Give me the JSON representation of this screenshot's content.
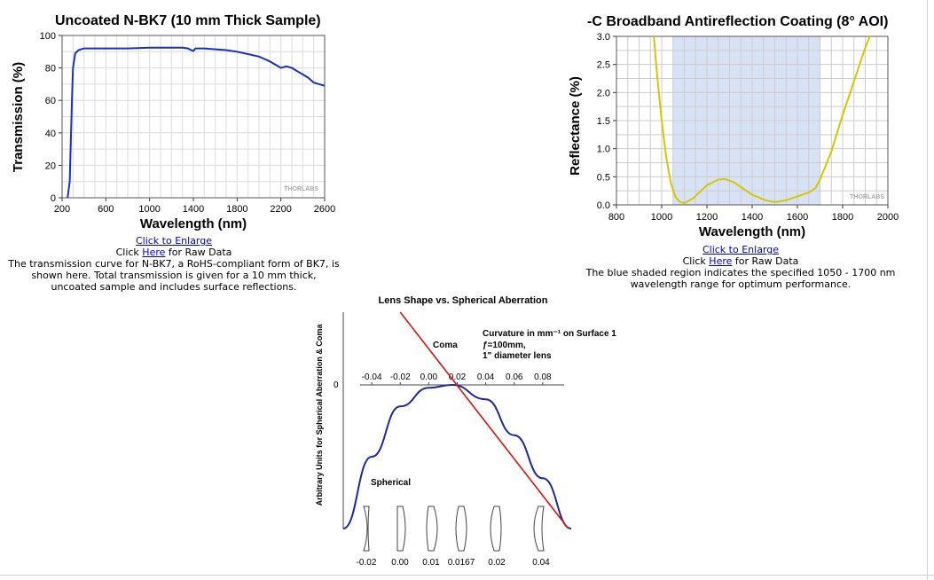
{
  "chart_data": [
    {
      "type": "line",
      "title": "Uncoated N-BK7 (10 mm Thick Sample)",
      "xlabel": "Wavelength (nm)",
      "ylabel": "Transmission (%)",
      "xlim": [
        200,
        2600
      ],
      "ylim": [
        0,
        100
      ],
      "xticks": [
        200,
        600,
        1000,
        1400,
        1800,
        2200,
        2600
      ],
      "yticks": [
        0,
        20,
        40,
        60,
        80,
        100
      ],
      "grid": true,
      "watermark": "THORLABS",
      "color": "#1a2ecc",
      "series": [
        {
          "x": [
            250,
            270,
            290,
            300,
            320,
            350,
            400,
            500,
            600,
            800,
            1000,
            1200,
            1300,
            1350,
            1380,
            1400,
            1420,
            1500,
            1600,
            1700,
            1800,
            1900,
            2000,
            2050,
            2100,
            2150,
            2200,
            2250,
            2300,
            2350,
            2400,
            2450,
            2500,
            2550,
            2600
          ],
          "y": [
            0,
            10,
            60,
            80,
            89,
            91,
            92,
            92,
            92,
            92,
            92.5,
            92.5,
            92.5,
            92,
            91,
            90.5,
            92,
            92,
            91.5,
            91,
            90,
            88.5,
            87,
            85.5,
            84,
            82,
            80,
            81,
            80,
            78,
            76,
            74,
            71,
            70,
            69
          ]
        }
      ]
    },
    {
      "type": "line",
      "title": "-C Broadband Antireflection Coating (8° AOI)",
      "xlabel": "Wavelength (nm)",
      "ylabel": "Reflectance (%)",
      "xlim": [
        800,
        2000
      ],
      "ylim": [
        0,
        3.0
      ],
      "xticks": [
        800,
        1000,
        1200,
        1400,
        1600,
        1800,
        2000
      ],
      "yticks": [
        "0.0",
        "0.5",
        "1.0",
        "1.5",
        "2.0",
        "2.5",
        "3.0"
      ],
      "grid": true,
      "watermark": "THORLABS",
      "color": "#d4c800",
      "shaded_region": [
        1050,
        1700
      ],
      "series": [
        {
          "x": [
            965,
            980,
            1000,
            1020,
            1040,
            1060,
            1080,
            1100,
            1140,
            1200,
            1250,
            1280,
            1320,
            1400,
            1460,
            1500,
            1550,
            1600,
            1650,
            1680,
            1700,
            1750,
            1800,
            1850,
            1900,
            1920
          ],
          "y": [
            3.0,
            2.3,
            1.5,
            0.85,
            0.4,
            0.15,
            0.05,
            0.03,
            0.12,
            0.35,
            0.45,
            0.46,
            0.4,
            0.18,
            0.08,
            0.05,
            0.08,
            0.15,
            0.22,
            0.3,
            0.45,
            0.95,
            1.6,
            2.2,
            2.8,
            3.0
          ]
        }
      ]
    },
    {
      "type": "line",
      "title": "Lens Shape vs. Spherical Aberration",
      "xlabel": "",
      "ylabel": "Arbitrary Units for Spherical Aberration & Coma",
      "xlim": [
        -0.06,
        0.1
      ],
      "xticks": [
        "-0.04",
        "-0.02",
        "0.00",
        "0.02",
        "0.04",
        "0.06",
        "0.08"
      ],
      "y_zero_label": "0",
      "note_lines": [
        "Curvature in mm⁻¹ on Surface 1",
        "ƒ=100mm,",
        "1\" diameter lens"
      ],
      "series": [
        {
          "name": "Coma",
          "color": "#e01010",
          "x": [
            -0.02,
            0.098
          ],
          "y": [
            1.1,
            -1.0
          ]
        },
        {
          "name": "Spherical",
          "color": "#1c2a9a",
          "x": [
            -0.06,
            -0.04,
            -0.02,
            0.0,
            0.0167,
            0.04,
            0.06,
            0.08,
            0.1
          ],
          "y": [
            -1.0,
            -0.5,
            -0.15,
            -0.02,
            0.0,
            -0.1,
            -0.35,
            -0.65,
            -1.0
          ]
        }
      ],
      "lens_labels": [
        "-0.02",
        "0.00",
        "0.01",
        "0.0167",
        "0.02",
        "0.04"
      ]
    }
  ],
  "captions": {
    "left": {
      "enlarge_link": "Click to Enlarge",
      "raw_prefix": "Click ",
      "raw_link": "Here",
      "raw_suffix": " for Raw Data",
      "desc": "The transmission curve for N-BK7, a RoHS-compliant form of BK7, is shown here. Total transmission is given for a 10 mm thick, uncoated sample and includes surface reflections."
    },
    "right": {
      "enlarge_link": "Click to Enlarge",
      "raw_prefix": "Click ",
      "raw_link": "Here",
      "raw_suffix": " for Raw Data",
      "desc": "The blue shaded region indicates the specified 1050 - 1700 nm wavelength range for optimum performance."
    }
  }
}
